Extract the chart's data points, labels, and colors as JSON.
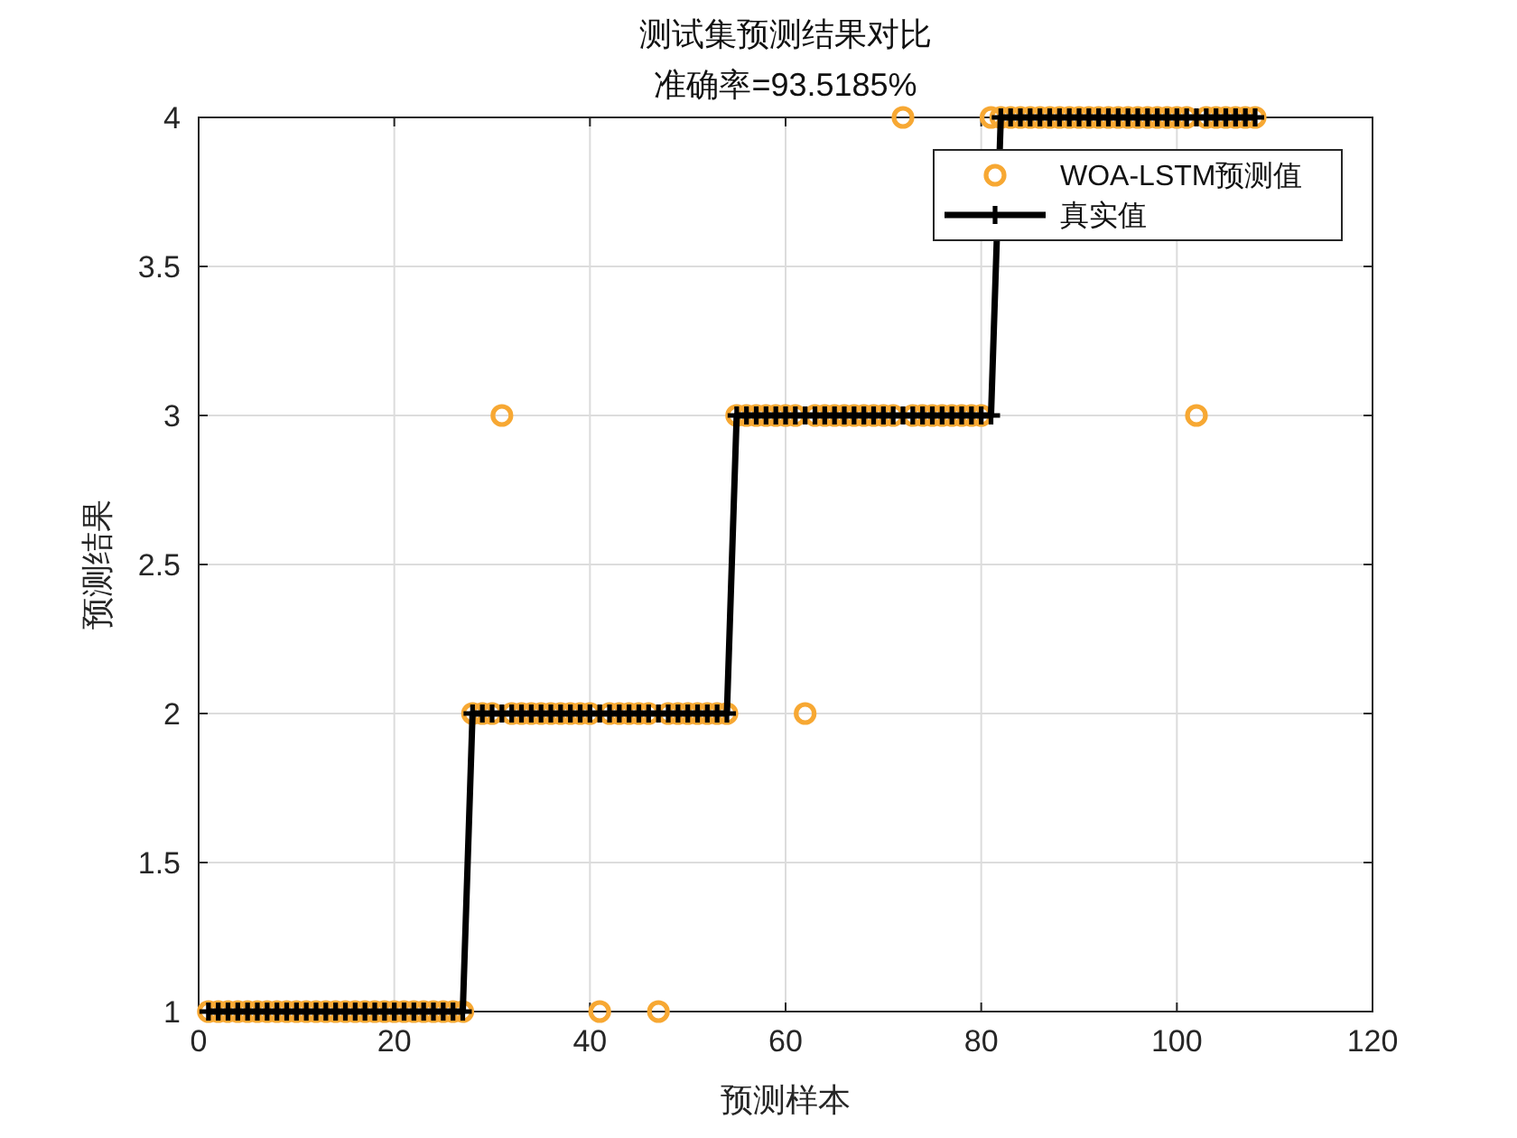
{
  "chart_data": {
    "type": "scatter",
    "title": "测试集预测结果对比",
    "subtitle": "准确率=93.5185%",
    "xlabel": "预测样本",
    "ylabel": "预测结果",
    "x": [
      1,
      2,
      3,
      4,
      5,
      6,
      7,
      8,
      9,
      10,
      11,
      12,
      13,
      14,
      15,
      16,
      17,
      18,
      19,
      20,
      21,
      22,
      23,
      24,
      25,
      26,
      27,
      28,
      29,
      30,
      31,
      32,
      33,
      34,
      35,
      36,
      37,
      38,
      39,
      40,
      41,
      42,
      43,
      44,
      45,
      46,
      47,
      48,
      49,
      50,
      51,
      52,
      53,
      54,
      55,
      56,
      57,
      58,
      59,
      60,
      61,
      62,
      63,
      64,
      65,
      66,
      67,
      68,
      69,
      70,
      71,
      72,
      73,
      74,
      75,
      76,
      77,
      78,
      79,
      80,
      81,
      82,
      83,
      84,
      85,
      86,
      87,
      88,
      89,
      90,
      91,
      92,
      93,
      94,
      95,
      96,
      97,
      98,
      99,
      100,
      101,
      102,
      103,
      104,
      105,
      106,
      107,
      108
    ],
    "series": [
      {
        "name": "WOA-LSTM预测值",
        "type": "scatter",
        "marker": "circle",
        "color": "#f7a833",
        "values": [
          1,
          1,
          1,
          1,
          1,
          1,
          1,
          1,
          1,
          1,
          1,
          1,
          1,
          1,
          1,
          1,
          1,
          1,
          1,
          1,
          1,
          1,
          1,
          1,
          1,
          1,
          1,
          2,
          2,
          2,
          3,
          2,
          2,
          2,
          2,
          2,
          2,
          2,
          2,
          2,
          1,
          2,
          2,
          2,
          2,
          2,
          1,
          2,
          2,
          2,
          2,
          2,
          2,
          2,
          3,
          3,
          3,
          3,
          3,
          3,
          3,
          2,
          3,
          3,
          3,
          3,
          3,
          3,
          3,
          3,
          3,
          4,
          3,
          3,
          3,
          3,
          3,
          3,
          3,
          3,
          4,
          4,
          4,
          4,
          4,
          4,
          4,
          4,
          4,
          4,
          4,
          4,
          4,
          4,
          4,
          4,
          4,
          4,
          4,
          4,
          4,
          3,
          4,
          4,
          4,
          4,
          4,
          4
        ]
      },
      {
        "name": "真实值",
        "type": "line",
        "marker": "cross",
        "line_style": "solid",
        "color": "#000000",
        "values": [
          1,
          1,
          1,
          1,
          1,
          1,
          1,
          1,
          1,
          1,
          1,
          1,
          1,
          1,
          1,
          1,
          1,
          1,
          1,
          1,
          1,
          1,
          1,
          1,
          1,
          1,
          1,
          2,
          2,
          2,
          2,
          2,
          2,
          2,
          2,
          2,
          2,
          2,
          2,
          2,
          2,
          2,
          2,
          2,
          2,
          2,
          2,
          2,
          2,
          2,
          2,
          2,
          2,
          2,
          3,
          3,
          3,
          3,
          3,
          3,
          3,
          3,
          3,
          3,
          3,
          3,
          3,
          3,
          3,
          3,
          3,
          3,
          3,
          3,
          3,
          3,
          3,
          3,
          3,
          3,
          3,
          4,
          4,
          4,
          4,
          4,
          4,
          4,
          4,
          4,
          4,
          4,
          4,
          4,
          4,
          4,
          4,
          4,
          4,
          4,
          4,
          4,
          4,
          4,
          4,
          4,
          4,
          4
        ]
      }
    ],
    "xlim": [
      0,
      120
    ],
    "xticks": [
      0,
      20,
      40,
      60,
      80,
      100,
      120
    ],
    "ylim": [
      1,
      4
    ],
    "yticks": [
      1,
      {
        "value": 1.5,
        "label": "1.5"
      },
      2,
      {
        "value": 2.5,
        "label": "2.5"
      },
      3,
      {
        "value": 3.5,
        "label": "3.5"
      },
      4
    ],
    "grid": true,
    "legend": "top right"
  }
}
